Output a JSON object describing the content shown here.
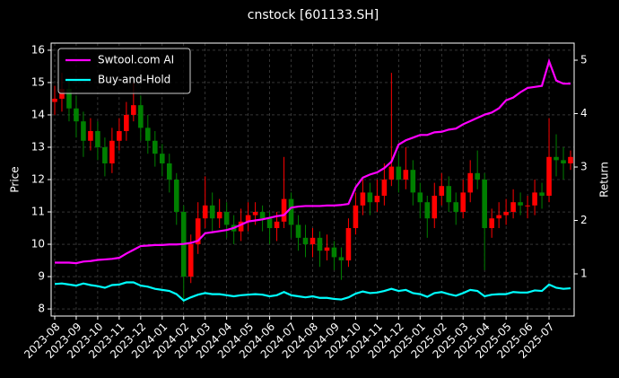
{
  "chart_data": {
    "type": "candlestick",
    "title": "cnstock [601133.SH]",
    "ylabel": "Price",
    "y2label": "Return",
    "categories": [
      "2023-08",
      null,
      null,
      "2023-09",
      null,
      null,
      "2023-10",
      null,
      null,
      "2023-11",
      null,
      null,
      "2023-12",
      null,
      null,
      "2024-01",
      null,
      null,
      "2024-02",
      null,
      null,
      "2024-03",
      null,
      null,
      "2024-04",
      null,
      null,
      "2024-05",
      null,
      null,
      "2024-06",
      null,
      null,
      "2024-07",
      null,
      null,
      "2024-08",
      null,
      null,
      "2024-09",
      null,
      null,
      "2024-10",
      null,
      null,
      "2024-11",
      null,
      null,
      "2024-12",
      null,
      null,
      "2025-01",
      null,
      null,
      "2025-02",
      null,
      null,
      "2025-03",
      null,
      null,
      "2025-04",
      null,
      null,
      "2025-05",
      null,
      null,
      "2025-06",
      null,
      null,
      "2025-07",
      null,
      null,
      null
    ],
    "open": [
      14.4,
      14.5,
      14.8,
      14.2,
      13.8,
      13.2,
      13.5,
      13.0,
      12.5,
      13.2,
      13.5,
      14.0,
      14.3,
      13.6,
      13.2,
      12.8,
      12.5,
      12.0,
      11.0,
      9.0,
      10.0,
      10.8,
      11.2,
      10.8,
      11.0,
      10.6,
      10.4,
      10.7,
      10.9,
      11.0,
      10.8,
      10.5,
      10.7,
      11.4,
      10.6,
      10.2,
      10.0,
      10.2,
      9.8,
      9.9,
      9.6,
      9.5,
      10.5,
      11.2,
      11.6,
      11.3,
      11.5,
      12.0,
      12.4,
      12.0,
      12.3,
      11.6,
      11.3,
      10.8,
      11.5,
      11.8,
      11.3,
      11.0,
      11.6,
      12.2,
      12.0,
      10.5,
      10.8,
      10.9,
      11.0,
      11.3,
      11.2,
      11.2,
      11.6,
      11.5,
      12.7,
      12.6,
      12.5
    ],
    "high": [
      14.9,
      15.3,
      15.1,
      14.6,
      14.1,
      13.9,
      13.8,
      13.3,
      13.6,
      13.9,
      14.4,
      15.0,
      14.6,
      14.0,
      13.5,
      13.1,
      12.8,
      12.2,
      11.2,
      10.3,
      11.3,
      12.1,
      11.6,
      11.4,
      11.3,
      10.9,
      11.1,
      11.3,
      11.3,
      11.2,
      11.0,
      11.0,
      12.7,
      11.6,
      10.9,
      10.6,
      10.5,
      10.4,
      10.3,
      10.1,
      9.9,
      10.8,
      11.6,
      12.0,
      11.9,
      12.0,
      12.5,
      15.3,
      12.8,
      13.0,
      12.6,
      11.9,
      11.5,
      11.9,
      12.2,
      12.1,
      11.6,
      12.0,
      12.6,
      12.9,
      12.2,
      11.1,
      11.3,
      11.4,
      11.7,
      11.6,
      11.5,
      12.0,
      11.9,
      13.9,
      13.4,
      13.0,
      12.9
    ],
    "low": [
      14.0,
      14.1,
      13.8,
      13.3,
      12.7,
      12.9,
      12.6,
      12.1,
      12.2,
      12.9,
      13.2,
      13.8,
      13.2,
      12.8,
      12.4,
      12.1,
      11.6,
      10.6,
      8.2,
      8.8,
      9.7,
      10.5,
      10.4,
      10.5,
      10.2,
      10.0,
      10.1,
      10.4,
      10.6,
      10.4,
      10.0,
      10.1,
      10.5,
      10.2,
      9.8,
      9.6,
      9.6,
      9.3,
      9.5,
      9.2,
      8.9,
      9.3,
      10.3,
      10.9,
      10.9,
      11.0,
      11.2,
      11.8,
      11.6,
      11.7,
      11.2,
      10.8,
      10.2,
      10.5,
      11.2,
      11.0,
      10.6,
      10.8,
      11.3,
      11.7,
      9.2,
      10.2,
      10.5,
      10.6,
      10.8,
      10.9,
      10.8,
      10.9,
      11.1,
      11.3,
      12.1,
      12.0,
      12.3
    ],
    "close": [
      14.5,
      14.8,
      14.2,
      13.8,
      13.2,
      13.5,
      13.0,
      12.5,
      13.2,
      13.5,
      14.0,
      14.3,
      13.6,
      13.2,
      12.8,
      12.5,
      12.0,
      11.0,
      9.0,
      10.0,
      10.8,
      11.2,
      10.8,
      11.0,
      10.6,
      10.4,
      10.7,
      10.9,
      11.0,
      10.8,
      10.5,
      10.7,
      11.4,
      10.6,
      10.2,
      10.0,
      10.2,
      9.8,
      9.9,
      9.6,
      9.5,
      10.5,
      11.2,
      11.6,
      11.3,
      11.5,
      12.0,
      12.4,
      12.0,
      12.3,
      11.6,
      11.3,
      10.8,
      11.5,
      11.8,
      11.3,
      11.0,
      11.6,
      12.2,
      12.0,
      10.5,
      10.8,
      10.9,
      11.0,
      11.3,
      11.2,
      11.2,
      11.6,
      11.5,
      12.7,
      12.6,
      12.5,
      12.7
    ],
    "up_color": "#ff0000",
    "down_color": "#008000",
    "series": [
      {
        "name": "Swtool.com AI",
        "color": "#ff00ff",
        "axis": "y2",
        "values": [
          1.21,
          1.21,
          1.21,
          1.2,
          1.23,
          1.24,
          1.26,
          1.27,
          1.28,
          1.3,
          1.38,
          1.45,
          1.52,
          1.53,
          1.54,
          1.54,
          1.55,
          1.55,
          1.56,
          1.58,
          1.62,
          1.76,
          1.78,
          1.8,
          1.82,
          1.86,
          1.92,
          1.98,
          2.0,
          2.02,
          2.05,
          2.08,
          2.1,
          2.24,
          2.26,
          2.27,
          2.27,
          2.27,
          2.28,
          2.28,
          2.29,
          2.31,
          2.62,
          2.8,
          2.86,
          2.9,
          2.98,
          3.1,
          3.42,
          3.5,
          3.55,
          3.6,
          3.6,
          3.65,
          3.66,
          3.7,
          3.72,
          3.8,
          3.86,
          3.92,
          3.98,
          4.02,
          4.1,
          4.25,
          4.3,
          4.4,
          4.48,
          4.5,
          4.52,
          4.98,
          4.62,
          4.56,
          4.56
        ]
      },
      {
        "name": "Buy-and-Hold",
        "color": "#00ffff",
        "axis": "y2",
        "values": [
          0.81,
          0.82,
          0.8,
          0.78,
          0.82,
          0.79,
          0.77,
          0.74,
          0.79,
          0.8,
          0.84,
          0.84,
          0.78,
          0.76,
          0.72,
          0.7,
          0.68,
          0.62,
          0.5,
          0.56,
          0.61,
          0.64,
          0.62,
          0.62,
          0.6,
          0.58,
          0.6,
          0.61,
          0.62,
          0.61,
          0.58,
          0.6,
          0.66,
          0.6,
          0.58,
          0.56,
          0.58,
          0.55,
          0.55,
          0.53,
          0.52,
          0.56,
          0.63,
          0.67,
          0.64,
          0.65,
          0.68,
          0.72,
          0.68,
          0.7,
          0.64,
          0.62,
          0.57,
          0.64,
          0.66,
          0.62,
          0.59,
          0.64,
          0.7,
          0.68,
          0.58,
          0.61,
          0.62,
          0.62,
          0.66,
          0.65,
          0.65,
          0.69,
          0.68,
          0.8,
          0.74,
          0.72,
          0.73
        ]
      }
    ],
    "ylim": [
      7.78,
      16.22
    ],
    "yticks": [
      8,
      9,
      10,
      11,
      12,
      13,
      14,
      15,
      16
    ],
    "y2lim": [
      0.21,
      5.32
    ],
    "y2ticks": [
      1,
      2,
      3,
      4,
      5
    ],
    "grid": true,
    "legend": "upper left",
    "background": "#000000"
  }
}
